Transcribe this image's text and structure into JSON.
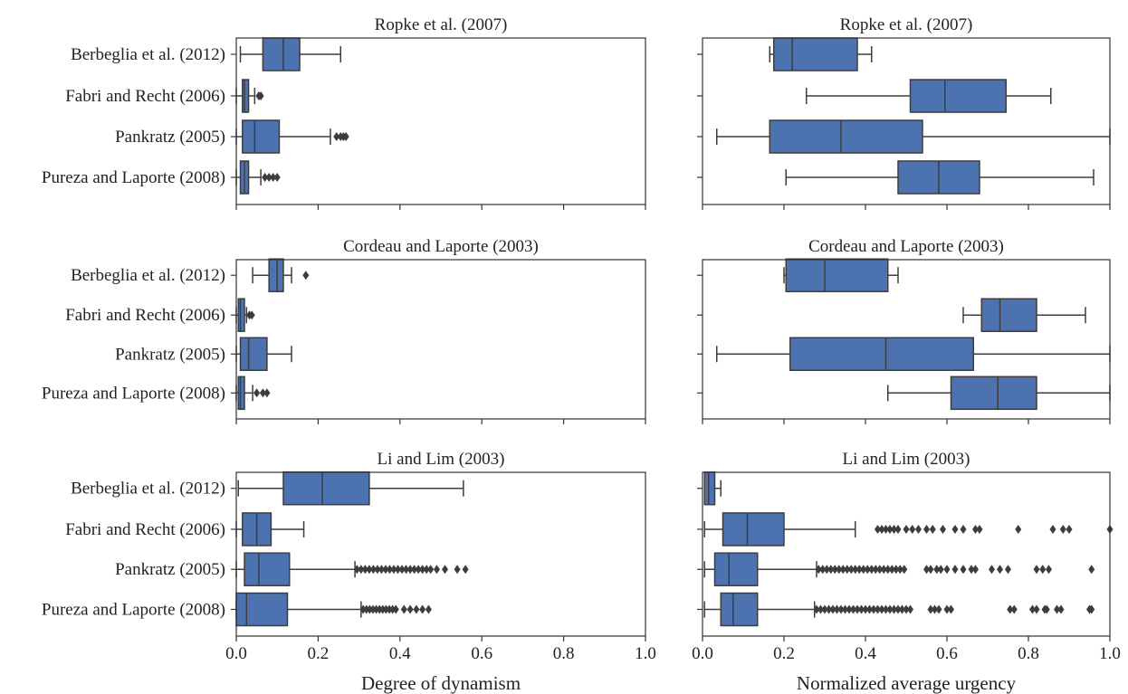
{
  "styles": {
    "box_fill": "#4c72b0",
    "line_color": "#3d3d3d",
    "axis_color": "#333333"
  },
  "chart_data": {
    "type": "boxplot",
    "orientation": "horizontal",
    "categories": [
      "Berbeglia et al. (2012)",
      "Fabri and Recht (2006)",
      "Pankratz (2005)",
      "Pureza and Laporte (2008)"
    ],
    "columns": [
      {
        "xlabel": "Degree of dynamism",
        "xlim": [
          0,
          1
        ],
        "xticks": [
          "0.0",
          "0.2",
          "0.4",
          "0.6",
          "0.8",
          "1.0"
        ]
      },
      {
        "xlabel": "Normalized average urgency",
        "xlim": [
          0,
          1
        ],
        "xticks": [
          "0.0",
          "0.2",
          "0.4",
          "0.6",
          "0.8",
          "1.0"
        ]
      }
    ],
    "panels": [
      {
        "title": "Ropke et al. (2007)",
        "left": [
          {
            "whislo": 0.01,
            "q1": 0.065,
            "med": 0.115,
            "q3": 0.155,
            "whishi": 0.255,
            "fliers": []
          },
          {
            "whislo": 0.0,
            "q1": 0.015,
            "med": 0.02,
            "q3": 0.03,
            "whishi": 0.045,
            "fliers": [
              0.055,
              0.06
            ]
          },
          {
            "whislo": 0.0,
            "q1": 0.015,
            "med": 0.045,
            "q3": 0.105,
            "whishi": 0.23,
            "fliers": [
              0.245,
              0.255,
              0.262,
              0.268
            ]
          },
          {
            "whislo": 0.0,
            "q1": 0.01,
            "med": 0.02,
            "q3": 0.03,
            "whishi": 0.06,
            "fliers": [
              0.07,
              0.08,
              0.09,
              0.1
            ]
          }
        ],
        "right": [
          {
            "whislo": 0.165,
            "q1": 0.175,
            "med": 0.22,
            "q3": 0.38,
            "whishi": 0.415,
            "fliers": []
          },
          {
            "whislo": 0.255,
            "q1": 0.51,
            "med": 0.595,
            "q3": 0.745,
            "whishi": 0.855,
            "fliers": []
          },
          {
            "whislo": 0.035,
            "q1": 0.165,
            "med": 0.34,
            "q3": 0.54,
            "whishi": 1.0,
            "fliers": []
          },
          {
            "whislo": 0.205,
            "q1": 0.48,
            "med": 0.58,
            "q3": 0.68,
            "whishi": 0.96,
            "fliers": []
          }
        ]
      },
      {
        "title": "Cordeau and Laporte (2003)",
        "left": [
          {
            "whislo": 0.04,
            "q1": 0.08,
            "med": 0.1,
            "q3": 0.115,
            "whishi": 0.135,
            "fliers": [
              0.17
            ]
          },
          {
            "whislo": 0.0,
            "q1": 0.005,
            "med": 0.01,
            "q3": 0.02,
            "whishi": 0.025,
            "fliers": [
              0.032,
              0.038
            ]
          },
          {
            "whislo": 0.0,
            "q1": 0.01,
            "med": 0.03,
            "q3": 0.075,
            "whishi": 0.135,
            "fliers": []
          },
          {
            "whislo": 0.0,
            "q1": 0.005,
            "med": 0.01,
            "q3": 0.02,
            "whishi": 0.04,
            "fliers": [
              0.05,
              0.065,
              0.075
            ]
          }
        ],
        "right": [
          {
            "whislo": 0.2,
            "q1": 0.205,
            "med": 0.3,
            "q3": 0.455,
            "whishi": 0.48,
            "fliers": []
          },
          {
            "whislo": 0.64,
            "q1": 0.685,
            "med": 0.73,
            "q3": 0.82,
            "whishi": 0.94,
            "fliers": []
          },
          {
            "whislo": 0.035,
            "q1": 0.215,
            "med": 0.45,
            "q3": 0.665,
            "whishi": 1.0,
            "fliers": []
          },
          {
            "whislo": 0.455,
            "q1": 0.61,
            "med": 0.725,
            "q3": 0.82,
            "whishi": 1.0,
            "fliers": []
          }
        ]
      },
      {
        "title": "Li and Lim (2003)",
        "left": [
          {
            "whislo": 0.005,
            "q1": 0.115,
            "med": 0.21,
            "q3": 0.325,
            "whishi": 0.555,
            "fliers": []
          },
          {
            "whislo": 0.0,
            "q1": 0.015,
            "med": 0.05,
            "q3": 0.085,
            "whishi": 0.165,
            "fliers": []
          },
          {
            "whislo": 0.0,
            "q1": 0.02,
            "med": 0.055,
            "q3": 0.13,
            "whishi": 0.29,
            "fliers": [
              0.295,
              0.305,
              0.315,
              0.325,
              0.335,
              0.345,
              0.355,
              0.365,
              0.375,
              0.385,
              0.395,
              0.405,
              0.415,
              0.425,
              0.435,
              0.445,
              0.455,
              0.465,
              0.475,
              0.49,
              0.51,
              0.54,
              0.56
            ]
          },
          {
            "whislo": 0.0,
            "q1": 0.0,
            "med": 0.025,
            "q3": 0.125,
            "whishi": 0.305,
            "fliers": [
              0.31,
              0.318,
              0.326,
              0.334,
              0.342,
              0.35,
              0.358,
              0.366,
              0.374,
              0.382,
              0.39,
              0.41,
              0.425,
              0.44,
              0.455,
              0.47
            ]
          }
        ],
        "right": [
          {
            "whislo": 0.005,
            "q1": 0.005,
            "med": 0.015,
            "q3": 0.03,
            "whishi": 0.045,
            "fliers": []
          },
          {
            "whislo": 0.005,
            "q1": 0.05,
            "med": 0.11,
            "q3": 0.2,
            "whishi": 0.375,
            "fliers": [
              0.43,
              0.44,
              0.45,
              0.46,
              0.47,
              0.48,
              0.5,
              0.515,
              0.53,
              0.55,
              0.565,
              0.59,
              0.62,
              0.64,
              0.67,
              0.68,
              0.775,
              0.86,
              0.885,
              0.9,
              1.0
            ]
          },
          {
            "whislo": 0.005,
            "q1": 0.03,
            "med": 0.065,
            "q3": 0.135,
            "whishi": 0.28,
            "fliers": [
              0.285,
              0.295,
              0.305,
              0.315,
              0.325,
              0.335,
              0.345,
              0.355,
              0.365,
              0.375,
              0.385,
              0.395,
              0.405,
              0.415,
              0.425,
              0.435,
              0.445,
              0.455,
              0.465,
              0.475,
              0.485,
              0.495,
              0.55,
              0.56,
              0.575,
              0.585,
              0.6,
              0.62,
              0.64,
              0.66,
              0.67,
              0.71,
              0.73,
              0.75,
              0.82,
              0.835,
              0.85,
              0.955
            ]
          },
          {
            "whislo": 0.005,
            "q1": 0.045,
            "med": 0.075,
            "q3": 0.135,
            "whishi": 0.275,
            "fliers": [
              0.28,
              0.29,
              0.3,
              0.31,
              0.32,
              0.33,
              0.34,
              0.35,
              0.36,
              0.37,
              0.38,
              0.39,
              0.4,
              0.41,
              0.42,
              0.43,
              0.44,
              0.45,
              0.46,
              0.47,
              0.48,
              0.49,
              0.5,
              0.51,
              0.56,
              0.57,
              0.58,
              0.6,
              0.61,
              0.755,
              0.765,
              0.81,
              0.82,
              0.84,
              0.845,
              0.87,
              0.88,
              0.95,
              0.955
            ]
          }
        ]
      }
    ]
  }
}
